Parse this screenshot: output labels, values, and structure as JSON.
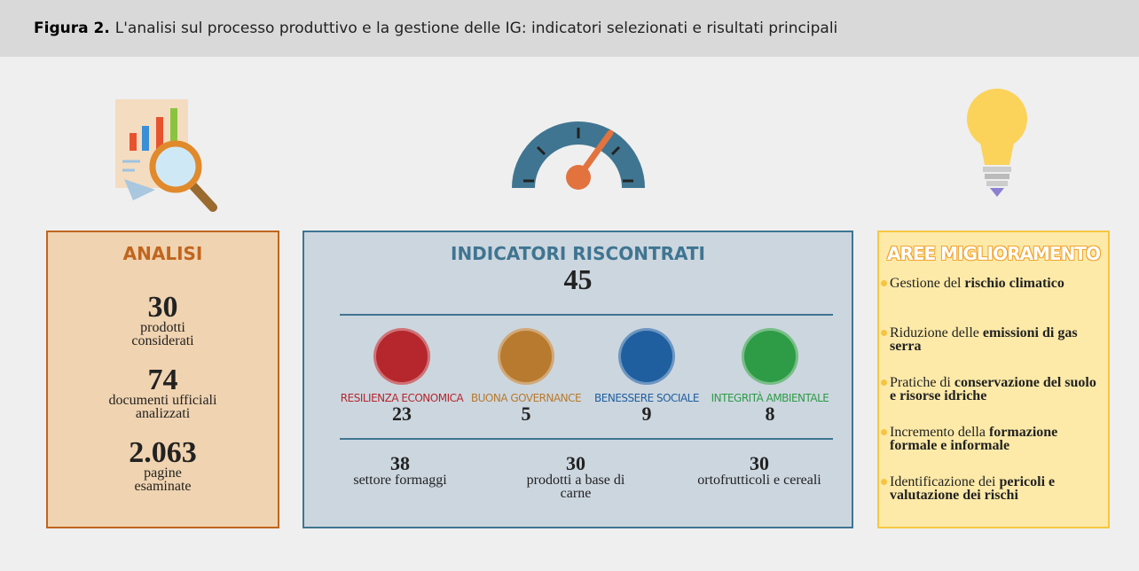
{
  "header": {
    "figure": "Figura 2.",
    "title": "L'analisi sul processo produttivo e la gestione delle IG: indicatori selezionati e risultati principali"
  },
  "analysis": {
    "title": "ANALISI",
    "items": [
      {
        "number": 30,
        "label": "prodotti considerati"
      },
      {
        "number": 74,
        "label": "documenti ufficiali analizzati"
      },
      {
        "number": "2.063",
        "label": "pagine esaminate"
      }
    ]
  },
  "indicators": {
    "title": "INDICATORI RISCONTRATI",
    "total": 45,
    "categories": [
      {
        "label": "RESILIENZA ECONOMICA",
        "value": 23,
        "color": "#b5272d"
      },
      {
        "label": "BUONA GOVERNANCE",
        "value": 5,
        "color": "#b87a2e"
      },
      {
        "label": "BENESSERE SOCIALE",
        "value": 9,
        "color": "#1f5fa0"
      },
      {
        "label": "INTEGRITÀ AMBIENTALE",
        "value": 8,
        "color": "#2e9b47"
      }
    ],
    "sectors": [
      {
        "value": 38,
        "label": "settore formaggi"
      },
      {
        "value": 30,
        "label": "prodotti a base di carne"
      },
      {
        "value": 30,
        "label": "ortofrutticoli e cereali"
      }
    ]
  },
  "improvements": {
    "title": "AREE MIGLIORAMENTO",
    "items": [
      {
        "text": "Gestione del",
        "emphasis": "rischio climatico"
      },
      {
        "text": "Riduzione delle",
        "emphasis": "emissioni di gas serra"
      },
      {
        "text": "Pratiche di",
        "emphasis": "conservazione del suolo e risorse idriche"
      },
      {
        "text": "Incremento della",
        "emphasis": "formazione formale e informale"
      },
      {
        "text": "Identificazione dei",
        "emphasis": "pericoli e valutazione dei rischi"
      }
    ]
  }
}
